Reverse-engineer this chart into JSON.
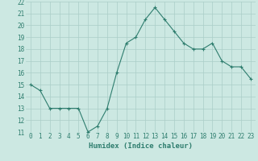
{
  "x": [
    0,
    1,
    2,
    3,
    4,
    5,
    6,
    7,
    8,
    9,
    10,
    11,
    12,
    13,
    14,
    15,
    16,
    17,
    18,
    19,
    20,
    21,
    22,
    23
  ],
  "y": [
    15,
    14.5,
    13,
    13,
    13,
    13,
    11,
    11.5,
    13,
    16,
    18.5,
    19,
    20.5,
    21.5,
    20.5,
    19.5,
    18.5,
    18,
    18,
    18.5,
    17,
    16.5,
    16.5,
    15.5
  ],
  "line_color": "#2e7d6e",
  "marker": "+",
  "bg_color": "#cce8e2",
  "grid_color": "#aacec8",
  "xlabel": "Humidex (Indice chaleur)",
  "ylim": [
    11,
    22
  ],
  "xlim": [
    -0.5,
    23.5
  ],
  "yticks": [
    11,
    12,
    13,
    14,
    15,
    16,
    17,
    18,
    19,
    20,
    21,
    22
  ],
  "xticks": [
    0,
    1,
    2,
    3,
    4,
    5,
    6,
    7,
    8,
    9,
    10,
    11,
    12,
    13,
    14,
    15,
    16,
    17,
    18,
    19,
    20,
    21,
    22,
    23
  ],
  "tick_color": "#2e7d6e",
  "tick_fontsize": 5.5,
  "xlabel_fontsize": 6.5
}
